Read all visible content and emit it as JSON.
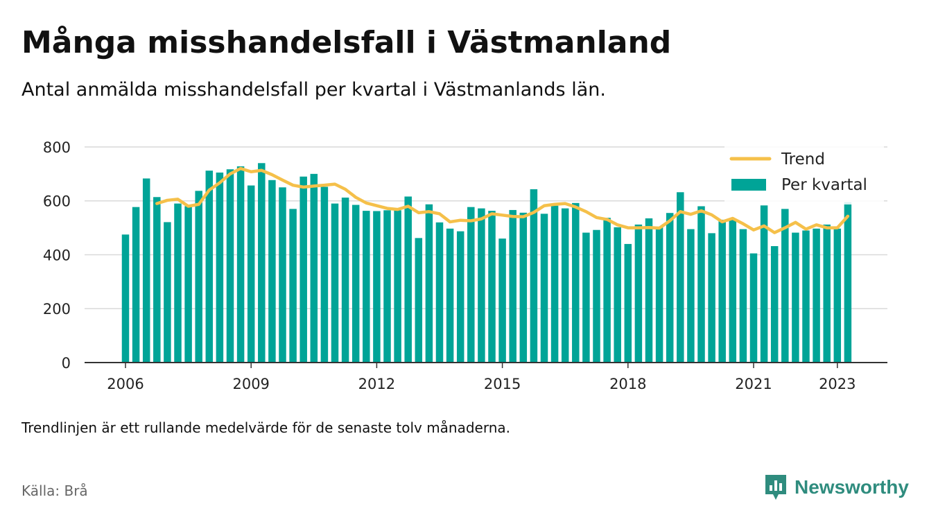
{
  "header": {
    "title": "Många misshandelsfall i Västmanland",
    "subtitle": "Antal anmälda misshandelsfall per kvartal i Västmanlands län."
  },
  "footer": {
    "note": "Trendlinjen är ett rullande medelvärde för de senaste tolv månaderna.",
    "source": "Källa: Brå",
    "brand": "Newsworthy"
  },
  "colors": {
    "bar": "#00a497",
    "trend": "#f5c04a",
    "grid": "#d9d9d9",
    "axis": "#333333",
    "brand": "#2f8c7e"
  },
  "chart_data": {
    "type": "bar",
    "x_start": "2006 Q1",
    "x_tick_labels": [
      "2006",
      "2009",
      "2012",
      "2015",
      "2018",
      "2021",
      "2023"
    ],
    "y_ticks": [
      0,
      200,
      400,
      600,
      800
    ],
    "ylim": [
      0,
      800
    ],
    "grid": true,
    "legend_position": "top-right",
    "series": [
      {
        "name": "Per kvartal",
        "type": "bar",
        "values": [
          475,
          577,
          683,
          614,
          521,
          590,
          580,
          637,
          712,
          705,
          717,
          728,
          657,
          740,
          677,
          650,
          570,
          690,
          700,
          652,
          590,
          612,
          585,
          563,
          562,
          565,
          565,
          616,
          462,
          587,
          520,
          497,
          487,
          577,
          572,
          563,
          460,
          566,
          556,
          643,
          552,
          582,
          572,
          592,
          482,
          492,
          537,
          502,
          440,
          512,
          535,
          502,
          555,
          632,
          495,
          580,
          480,
          530,
          530,
          495,
          405,
          583,
          432,
          570,
          482,
          490,
          497,
          512,
          497,
          595
        ]
      },
      {
        "name": "Trend",
        "type": "line",
        "start_index": 3,
        "values": [
          590,
          602,
          606,
          580,
          587,
          640,
          667,
          700,
          720,
          708,
          713,
          697,
          677,
          658,
          651,
          655,
          658,
          662,
          643,
          613,
          592,
          582,
          572,
          568,
          580,
          556,
          560,
          552,
          522,
          528,
          526,
          533,
          552,
          547,
          542,
          541,
          557,
          582,
          587,
          590,
          577,
          560,
          538,
          531,
          511,
          500,
          500,
          501,
          499,
          526,
          560,
          550,
          563,
          548,
          522,
          535,
          515,
          492,
          507,
          482,
          500,
          520,
          495,
          511,
          500,
          500,
          543
        ]
      }
    ]
  }
}
